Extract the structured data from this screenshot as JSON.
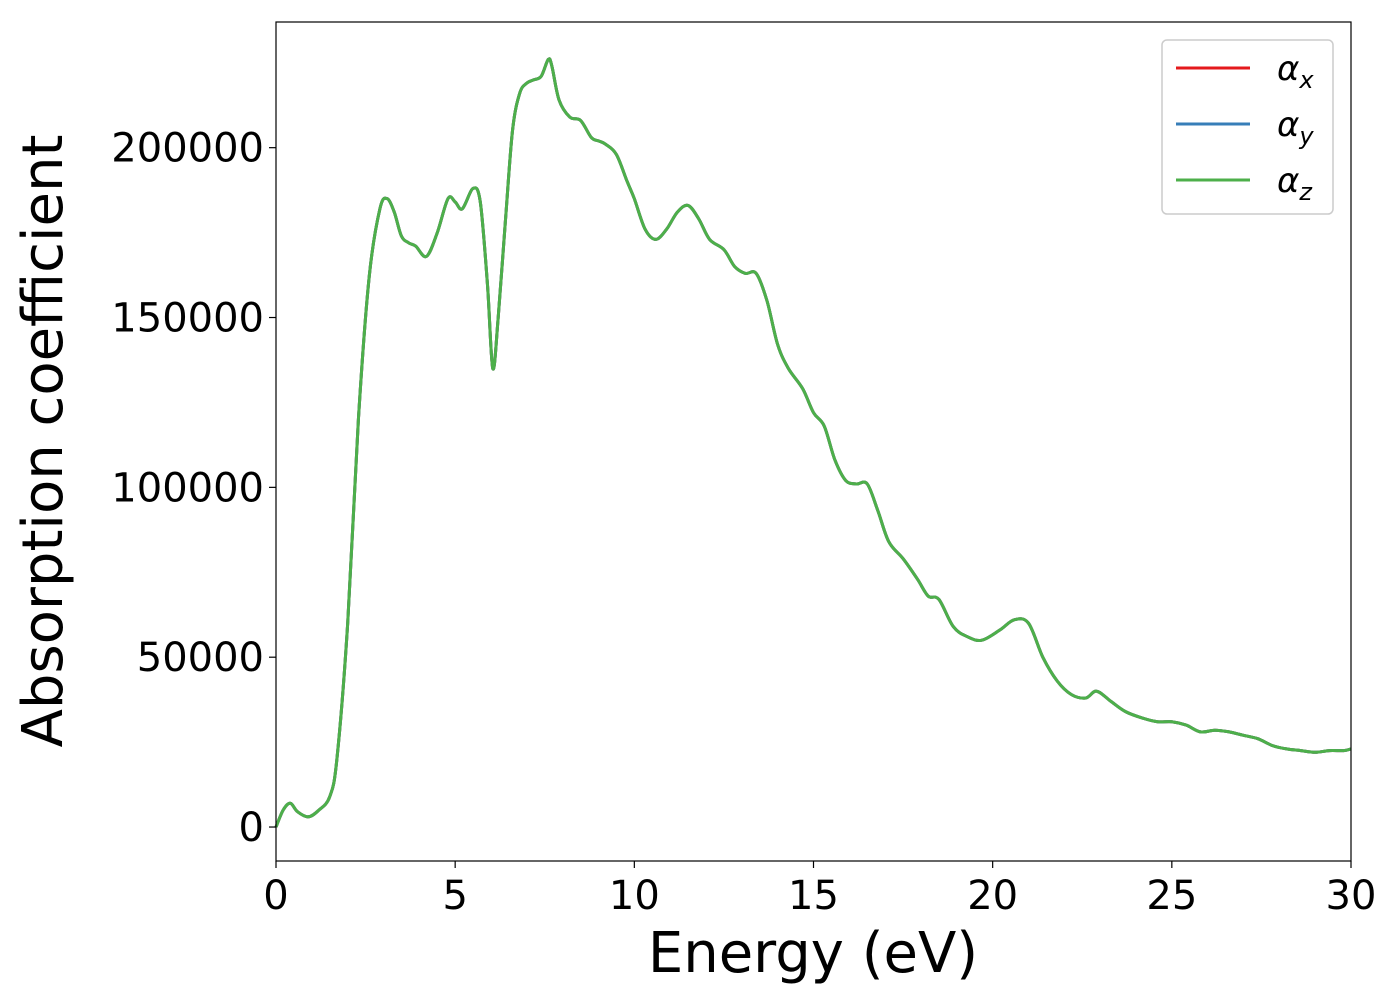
{
  "chart_data": {
    "type": "line",
    "title": "",
    "xlabel": "Energy (eV)",
    "ylabel": "Absorption coefficient",
    "xlim": [
      0,
      30
    ],
    "ylim": [
      -10000,
      237000
    ],
    "xticks": [
      0,
      5,
      10,
      15,
      20,
      25,
      30
    ],
    "yticks": [
      0,
      50000,
      100000,
      150000,
      200000
    ],
    "grid": false,
    "legend_position": "top-right",
    "series": [
      {
        "name": "αx",
        "sym": "α",
        "sub": "x",
        "color": "#e41a1c",
        "x": [
          0,
          0.2,
          0.4,
          0.6,
          0.9,
          1.2,
          1.5,
          1.7,
          2.0,
          2.3,
          2.6,
          2.9,
          3.1,
          3.3,
          3.5,
          3.7,
          3.9,
          4.2,
          4.5,
          4.8,
          5.0,
          5.2,
          5.5,
          5.7,
          5.9,
          6.05,
          6.2,
          6.4,
          6.6,
          6.8,
          7.0,
          7.2,
          7.4,
          7.6,
          7.7,
          7.9,
          8.2,
          8.5,
          8.8,
          9.0,
          9.2,
          9.5,
          9.8,
          10.0,
          10.3,
          10.6,
          10.9,
          11.2,
          11.5,
          11.8,
          12.1,
          12.5,
          12.8,
          13.1,
          13.4,
          13.7,
          14.0,
          14.3,
          14.7,
          15.0,
          15.3,
          15.6,
          15.9,
          16.2,
          16.5,
          16.8,
          17.1,
          17.5,
          17.9,
          18.2,
          18.5,
          18.9,
          19.3,
          19.7,
          20.2,
          20.6,
          21.0,
          21.4,
          21.8,
          22.2,
          22.6,
          22.9,
          23.3,
          23.7,
          24.2,
          24.6,
          25.0,
          25.4,
          25.8,
          26.2,
          26.6,
          27.0,
          27.4,
          27.8,
          28.2,
          28.6,
          29.0,
          29.4,
          29.8,
          30.0
        ],
        "y": [
          0,
          5000,
          7000,
          4500,
          3000,
          5000,
          9000,
          20000,
          60000,
          120000,
          162000,
          182000,
          185000,
          181000,
          174000,
          172000,
          171000,
          168000,
          175000,
          185000,
          184000,
          182000,
          188000,
          184000,
          160000,
          135000,
          150000,
          178000,
          205000,
          216000,
          219000,
          220000,
          221000,
          226000,
          224000,
          214000,
          209000,
          208000,
          203000,
          202000,
          201000,
          198000,
          190000,
          185000,
          176000,
          173000,
          176000,
          181000,
          183000,
          179000,
          173000,
          170000,
          165000,
          163000,
          163000,
          155000,
          142000,
          135000,
          129000,
          122000,
          118000,
          108000,
          102000,
          101000,
          101000,
          93000,
          84000,
          79000,
          73000,
          68000,
          67000,
          59000,
          56000,
          55000,
          58000,
          61000,
          60000,
          50000,
          43000,
          39000,
          38000,
          40000,
          37000,
          34000,
          32000,
          31000,
          31000,
          30000,
          28000,
          28500,
          28000,
          27000,
          26000,
          24000,
          23000,
          22500,
          22000,
          22500,
          22500,
          23000
        ]
      },
      {
        "name": "αy",
        "sym": "α",
        "sub": "y",
        "color": "#377eb8",
        "x": [
          0,
          0.2,
          0.4,
          0.6,
          0.9,
          1.2,
          1.5,
          1.7,
          2.0,
          2.3,
          2.6,
          2.9,
          3.1,
          3.3,
          3.5,
          3.7,
          3.9,
          4.2,
          4.5,
          4.8,
          5.0,
          5.2,
          5.5,
          5.7,
          5.9,
          6.05,
          6.2,
          6.4,
          6.6,
          6.8,
          7.0,
          7.2,
          7.4,
          7.6,
          7.7,
          7.9,
          8.2,
          8.5,
          8.8,
          9.0,
          9.2,
          9.5,
          9.8,
          10.0,
          10.3,
          10.6,
          10.9,
          11.2,
          11.5,
          11.8,
          12.1,
          12.5,
          12.8,
          13.1,
          13.4,
          13.7,
          14.0,
          14.3,
          14.7,
          15.0,
          15.3,
          15.6,
          15.9,
          16.2,
          16.5,
          16.8,
          17.1,
          17.5,
          17.9,
          18.2,
          18.5,
          18.9,
          19.3,
          19.7,
          20.2,
          20.6,
          21.0,
          21.4,
          21.8,
          22.2,
          22.6,
          22.9,
          23.3,
          23.7,
          24.2,
          24.6,
          25.0,
          25.4,
          25.8,
          26.2,
          26.6,
          27.0,
          27.4,
          27.8,
          28.2,
          28.6,
          29.0,
          29.4,
          29.8,
          30.0
        ],
        "y": [
          0,
          5000,
          7000,
          4500,
          3000,
          5000,
          9000,
          20000,
          60000,
          120000,
          162000,
          182000,
          185000,
          181000,
          174000,
          172000,
          171000,
          168000,
          175000,
          185000,
          184000,
          182000,
          188000,
          184000,
          160000,
          135000,
          150000,
          178000,
          205000,
          216000,
          219000,
          220000,
          221000,
          226000,
          224000,
          214000,
          209000,
          208000,
          203000,
          202000,
          201000,
          198000,
          190000,
          185000,
          176000,
          173000,
          176000,
          181000,
          183000,
          179000,
          173000,
          170000,
          165000,
          163000,
          163000,
          155000,
          142000,
          135000,
          129000,
          122000,
          118000,
          108000,
          102000,
          101000,
          101000,
          93000,
          84000,
          79000,
          73000,
          68000,
          67000,
          59000,
          56000,
          55000,
          58000,
          61000,
          60000,
          50000,
          43000,
          39000,
          38000,
          40000,
          37000,
          34000,
          32000,
          31000,
          31000,
          30000,
          28000,
          28500,
          28000,
          27000,
          26000,
          24000,
          23000,
          22500,
          22000,
          22500,
          22500,
          23000
        ]
      },
      {
        "name": "αz",
        "sym": "α",
        "sub": "z",
        "color": "#4daf4a",
        "x": [
          0,
          0.2,
          0.4,
          0.6,
          0.9,
          1.2,
          1.5,
          1.7,
          2.0,
          2.3,
          2.6,
          2.9,
          3.1,
          3.3,
          3.5,
          3.7,
          3.9,
          4.2,
          4.5,
          4.8,
          5.0,
          5.2,
          5.5,
          5.7,
          5.9,
          6.05,
          6.2,
          6.4,
          6.6,
          6.8,
          7.0,
          7.2,
          7.4,
          7.6,
          7.7,
          7.9,
          8.2,
          8.5,
          8.8,
          9.0,
          9.2,
          9.5,
          9.8,
          10.0,
          10.3,
          10.6,
          10.9,
          11.2,
          11.5,
          11.8,
          12.1,
          12.5,
          12.8,
          13.1,
          13.4,
          13.7,
          14.0,
          14.3,
          14.7,
          15.0,
          15.3,
          15.6,
          15.9,
          16.2,
          16.5,
          16.8,
          17.1,
          17.5,
          17.9,
          18.2,
          18.5,
          18.9,
          19.3,
          19.7,
          20.2,
          20.6,
          21.0,
          21.4,
          21.8,
          22.2,
          22.6,
          22.9,
          23.3,
          23.7,
          24.2,
          24.6,
          25.0,
          25.4,
          25.8,
          26.2,
          26.6,
          27.0,
          27.4,
          27.8,
          28.2,
          28.6,
          29.0,
          29.4,
          29.8,
          30.0
        ],
        "y": [
          0,
          5000,
          7000,
          4500,
          3000,
          5000,
          9000,
          20000,
          60000,
          120000,
          162000,
          182000,
          185000,
          181000,
          174000,
          172000,
          171000,
          168000,
          175000,
          185000,
          184000,
          182000,
          188000,
          184000,
          160000,
          135000,
          150000,
          178000,
          205000,
          216000,
          219000,
          220000,
          221000,
          226000,
          224000,
          214000,
          209000,
          208000,
          203000,
          202000,
          201000,
          198000,
          190000,
          185000,
          176000,
          173000,
          176000,
          181000,
          183000,
          179000,
          173000,
          170000,
          165000,
          163000,
          163000,
          155000,
          142000,
          135000,
          129000,
          122000,
          118000,
          108000,
          102000,
          101000,
          101000,
          93000,
          84000,
          79000,
          73000,
          68000,
          67000,
          59000,
          56000,
          55000,
          58000,
          61000,
          60000,
          50000,
          43000,
          39000,
          38000,
          40000,
          37000,
          34000,
          32000,
          31000,
          31000,
          30000,
          28000,
          28500,
          28000,
          27000,
          26000,
          24000,
          23000,
          22500,
          22000,
          22500,
          22500,
          23000
        ]
      }
    ]
  }
}
